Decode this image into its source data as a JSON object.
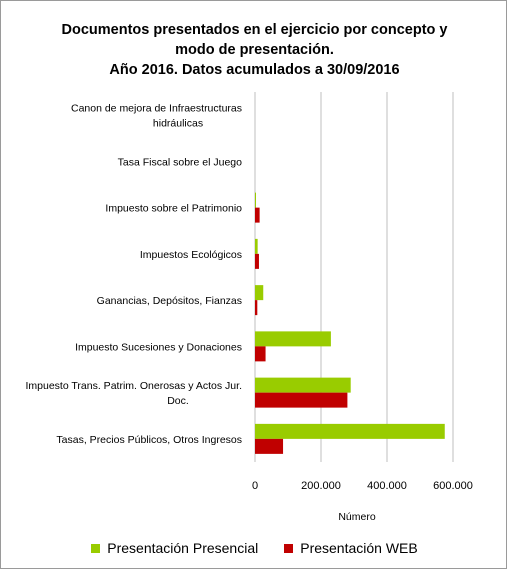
{
  "chart_data": {
    "type": "bar",
    "orientation": "horizontal",
    "title_lines": [
      "Documentos presentados en el ejercicio por concepto y",
      "modo de presentación.",
      "Año 2016. Datos acumulados a 30/09/2016"
    ],
    "xlabel": "Número",
    "xlim": [
      0,
      700000
    ],
    "xticks": [
      "0",
      "200.000",
      "400.000",
      "600.000"
    ],
    "xtick_values": [
      0,
      200000,
      400000,
      600000
    ],
    "grid": true,
    "legend_position": "bottom",
    "categories": [
      [
        "Canon de mejora de Infraestructuras",
        "hidráulicas"
      ],
      [
        "Tasa Fiscal sobre el Juego"
      ],
      [
        "Impuesto sobre el Patrimonio"
      ],
      [
        "Impuestos Ecológicos"
      ],
      [
        "Ganancias, Depósitos, Fianzas"
      ],
      [
        "Impuesto Sucesiones y Donaciones"
      ],
      [
        "Impuesto Trans. Patrim. Onerosas y Actos Jur.",
        "Doc."
      ],
      [
        "Tasas, Precios Públicos, Otros Ingresos"
      ]
    ],
    "series": [
      {
        "name": "Presentación Presencial",
        "color": "#99cc00",
        "values": [
          0,
          0,
          500,
          8000,
          25000,
          230000,
          290000,
          575000
        ]
      },
      {
        "name": "Presentación WEB",
        "color": "#c00000",
        "values": [
          0,
          0,
          14000,
          12000,
          7000,
          32000,
          280000,
          85000
        ]
      }
    ]
  }
}
